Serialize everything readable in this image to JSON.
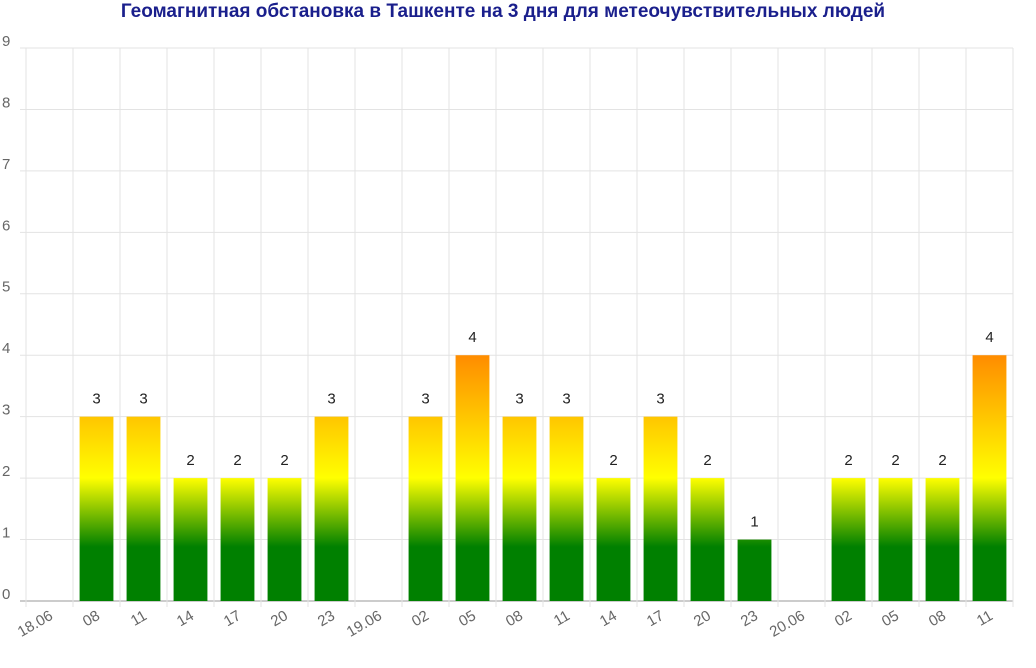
{
  "chart_data": {
    "type": "bar",
    "title": "Геомагнитная обстановка в Ташкенте на 3 дня для метеочувствительных людей",
    "categories": [
      "18.06",
      "08",
      "11",
      "14",
      "17",
      "20",
      "23",
      "19.06",
      "02",
      "05",
      "08",
      "11",
      "14",
      "17",
      "20",
      "23",
      "20.06",
      "02",
      "05",
      "08",
      "11"
    ],
    "values": [
      null,
      3,
      3,
      2,
      2,
      2,
      3,
      null,
      3,
      4,
      3,
      3,
      2,
      3,
      2,
      1,
      null,
      2,
      2,
      2,
      4
    ],
    "ylim": [
      0,
      9
    ],
    "yticks": [
      0,
      1,
      2,
      3,
      4,
      5,
      6,
      7,
      8,
      9
    ],
    "grid": true,
    "colors": [
      "#008000",
      "#ffff00",
      "#ff8c00"
    ]
  }
}
